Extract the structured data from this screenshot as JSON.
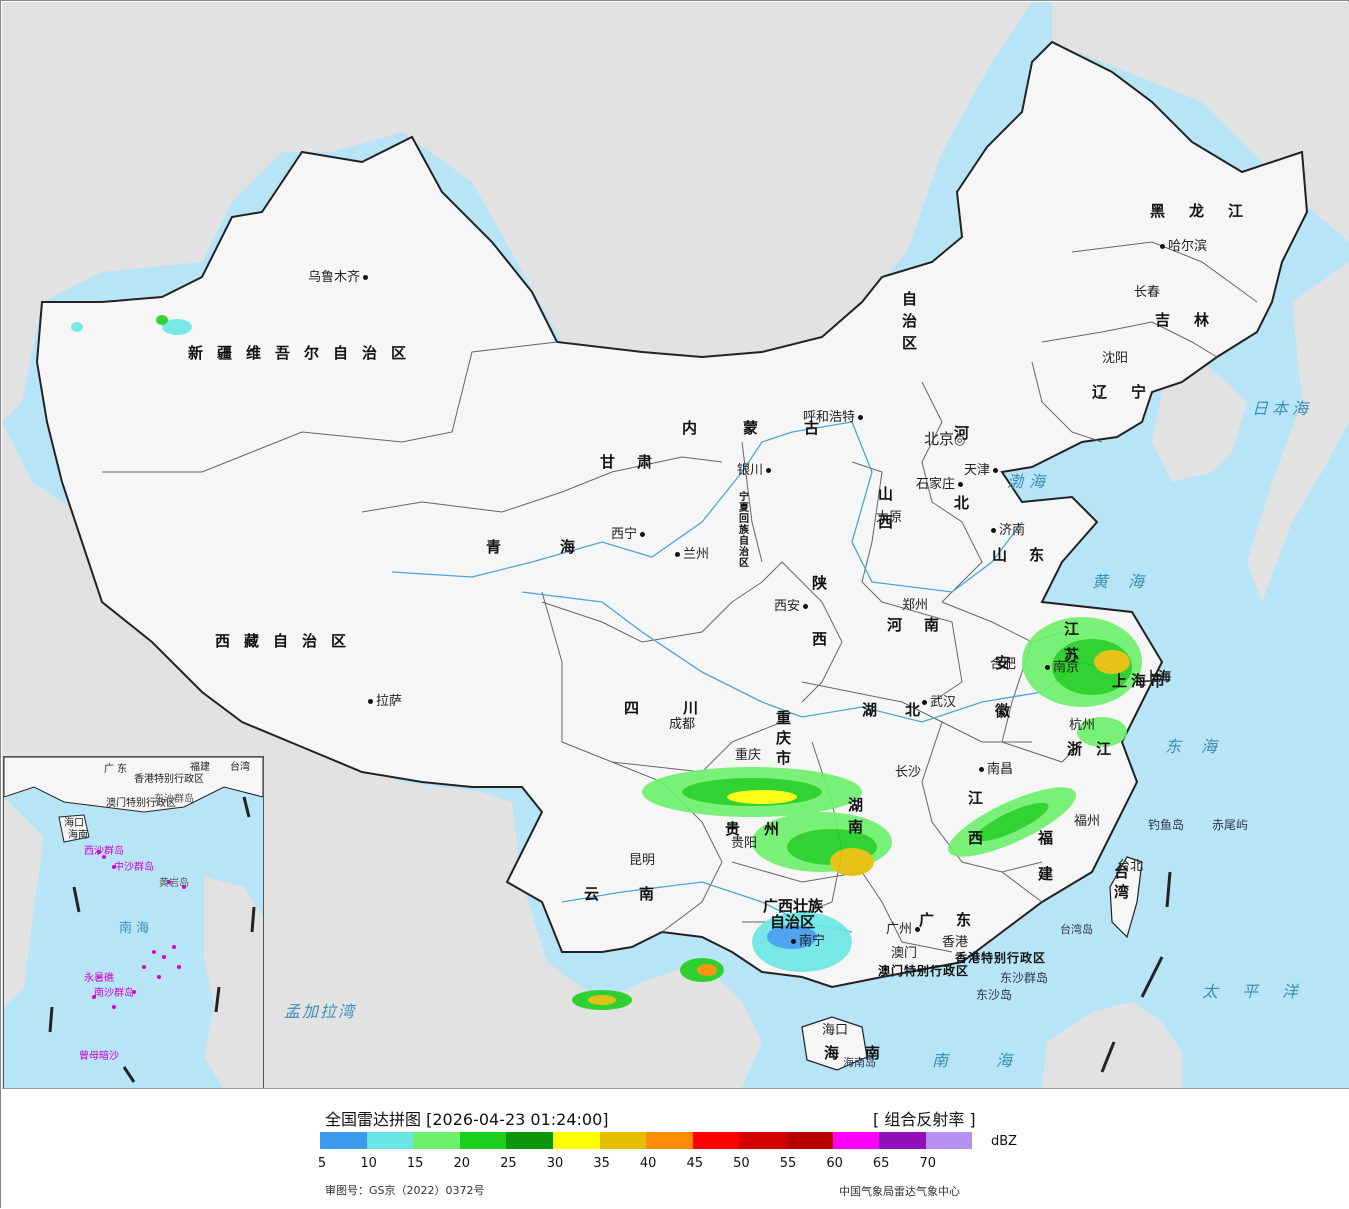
{
  "legend": {
    "title": "全国雷达拼图 [2026-04-23 01:24:00]",
    "product": "[ 组合反射率 ]",
    "unit": "dBZ",
    "ticks": [
      "5",
      "10",
      "15",
      "20",
      "25",
      "30",
      "35",
      "40",
      "45",
      "50",
      "55",
      "60",
      "65",
      "70"
    ],
    "colors": [
      "#3d9bef",
      "#6ae6e6",
      "#6cf06a",
      "#1ccf1c",
      "#0a960a",
      "#ffff00",
      "#e6be00",
      "#ff8c00",
      "#ff0000",
      "#d40000",
      "#b80000",
      "#ff00ff",
      "#9010ba",
      "#b691f0"
    ],
    "approval_number": "审图号：GS京（2022）0372号",
    "agency": "中国气象局雷达气象中心"
  },
  "provinces": {
    "xinjiang": "新疆维吾尔自治区",
    "xizang": "西藏自治区",
    "qinghai_1": "青",
    "qinghai_2": "海",
    "gansu": "甘肃",
    "neimenggu": "内蒙古",
    "neimenggu_zizhi": "自治区",
    "heilongjiang": "黑龙江",
    "jilin": "吉林",
    "liaoning": "辽宁",
    "hebei": "河北",
    "shanxi": "山西",
    "shaanxi": "陕西",
    "henan": "河南",
    "shandong": "山东",
    "jiangsu": "江苏",
    "anhui": "安徽",
    "zhejiang": "浙江",
    "shanghai": "上海市",
    "sichuan": "四川",
    "chongqing": "重庆市",
    "hubei": "湖北",
    "hunan": "湖南",
    "jiangxi": "江西",
    "fujian": "福建",
    "guizhou": "贵州",
    "yunnan": "云南",
    "guangxi_1": "广西壮族",
    "guangxi_2": "自治区",
    "guangdong": "广东",
    "hainan": "海南",
    "taiwan": "台湾",
    "ningxia": "宁夏回族自治区",
    "hongkong_sar": "香港特别行政区",
    "macao_sar": "澳门特别行政区"
  },
  "cities": {
    "urumqi": "乌鲁木齐",
    "lhasa": "拉萨",
    "xining": "西宁",
    "lanzhou": "兰州",
    "yinchuan": "银川",
    "hohhot": "呼和浩特",
    "beijing": "北京",
    "tianjin": "天津",
    "shijiazhuang": "石家庄",
    "taiyuan": "太原",
    "jinan": "济南",
    "zhengzhou": "郑州",
    "xian": "西安",
    "chengdu": "成都",
    "chongqing": "重庆",
    "wuhan": "武汉",
    "hefei": "合肥",
    "nanjing": "南京",
    "shanghai": "上海",
    "hangzhou": "杭州",
    "nanchang": "南昌",
    "changsha": "长沙",
    "guiyang": "贵阳",
    "kunming": "昆明",
    "nanning": "南宁",
    "guangzhou": "广州",
    "hongkong": "香港",
    "macao": "澳门",
    "haikou": "海口",
    "fuzhou": "福州",
    "taipei": "台北",
    "harbin": "哈尔滨",
    "changchun": "长春",
    "shenyang": "沈阳"
  },
  "places": {
    "bohai": "渤海",
    "huanghai": "黄海",
    "donghai": "东海",
    "nanhai": "南海",
    "japan_sea": "日本海",
    "pacific": "太平洋",
    "bengal": "孟加拉湾",
    "taiwan_island": "台湾岛",
    "hainan_island": "海南岛",
    "dongsha_islands": "东沙群岛",
    "dongsha_island": "东沙岛",
    "diaoyu": "钓鱼岛",
    "chiwei": "赤尾屿"
  },
  "inset": {
    "guangdong": "广 东",
    "hongkong_sar": "香港特别行政区",
    "macao_sar": "澳门特别行政区",
    "haikou": "海口",
    "hainan": "海南",
    "xisha": "西沙群岛",
    "dongsha": "东沙群岛",
    "zhongsha": "中沙群岛",
    "huangyan": "黄岩岛",
    "nanhai": "南 海",
    "nansha": "南沙群岛",
    "zengmu": "曾母暗沙",
    "yongshu": "永暑礁",
    "taiwan": "台湾",
    "fujian": "福建"
  }
}
